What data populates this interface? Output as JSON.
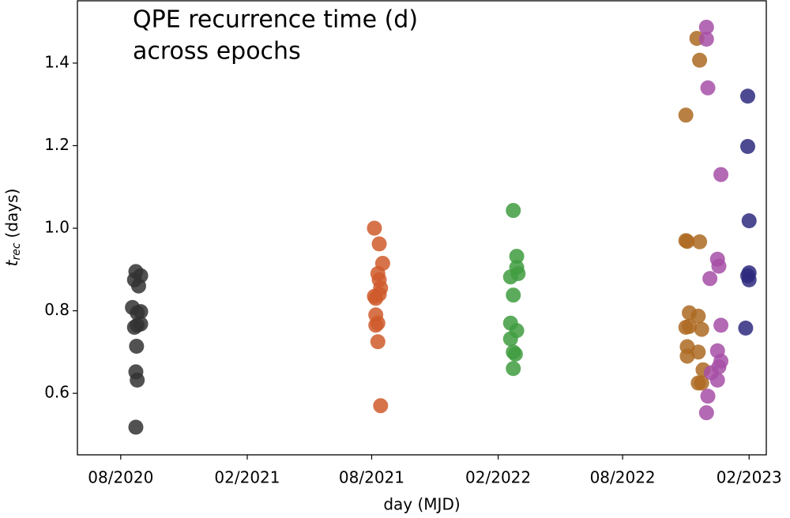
{
  "chart_data": {
    "type": "scatter",
    "title": [
      "QPE recurrence time (d)",
      "across epochs"
    ],
    "xlabel": "day (MJD)",
    "ylabel": {
      "symbol": "t",
      "subscript": "rec",
      "unit": "(days)"
    },
    "xlim": [
      58999,
      60001
    ],
    "ylim": [
      0.451,
      1.551
    ],
    "xticks": [
      {
        "value": 59062,
        "label": "08/2020"
      },
      {
        "value": 59246,
        "label": "02/2021"
      },
      {
        "value": 59427,
        "label": "08/2021"
      },
      {
        "value": 59611,
        "label": "02/2022"
      },
      {
        "value": 59792,
        "label": "08/2022"
      },
      {
        "value": 59976,
        "label": "02/2023"
      }
    ],
    "yticks": [
      0.6,
      0.8,
      {
        "value": 1,
        "label": "1.0"
      },
      1.2,
      1.4
    ],
    "grid": false,
    "series": [
      {
        "color": "#333333",
        "x": [
          59084,
          59082,
          59091,
          59088,
          59079,
          59091,
          59086,
          59082,
          59091,
          59086,
          59085,
          59084,
          59086,
          59084
        ],
        "values": [
          0.895,
          0.875,
          0.885,
          0.86,
          0.808,
          0.798,
          0.795,
          0.76,
          0.768,
          0.765,
          0.714,
          0.652,
          0.632,
          0.518
        ]
      },
      {
        "color": "#cf5a2c",
        "x": [
          59431,
          59438,
          59443,
          59436,
          59438,
          59440,
          59431,
          59433,
          59438,
          59433,
          59436,
          59433,
          59436,
          59440
        ],
        "values": [
          1.0,
          0.962,
          0.915,
          0.89,
          0.875,
          0.855,
          0.835,
          0.83,
          0.84,
          0.79,
          0.77,
          0.765,
          0.725,
          0.57
        ]
      },
      {
        "color": "#3f9c3f",
        "x": [
          59633,
          59638,
          59638,
          59640,
          59629,
          59633,
          59629,
          59638,
          59629,
          59633,
          59636,
          59633
        ],
        "values": [
          1.043,
          0.932,
          0.905,
          0.89,
          0.882,
          0.838,
          0.77,
          0.752,
          0.732,
          0.7,
          0.695,
          0.66
        ]
      },
      {
        "color": "#ad6a22",
        "x": [
          59900,
          59904,
          59884,
          59884,
          59886,
          59904,
          59889,
          59902,
          59884,
          59889,
          59907,
          59886,
          59902,
          59886,
          59909,
          59902,
          59907
        ],
        "values": [
          1.46,
          1.407,
          1.274,
          0.97,
          0.968,
          0.967,
          0.795,
          0.787,
          0.76,
          0.762,
          0.755,
          0.713,
          0.7,
          0.69,
          0.657,
          0.625,
          0.625
        ]
      },
      {
        "color": "#a64fa6",
        "x": [
          59914,
          59914,
          59916,
          59935,
          59930,
          59932,
          59919,
          59935,
          59930,
          59935,
          59932,
          59921,
          59930,
          59916,
          59914
        ],
        "values": [
          1.487,
          1.458,
          1.34,
          1.13,
          0.925,
          0.908,
          0.878,
          0.765,
          0.703,
          0.678,
          0.664,
          0.65,
          0.632,
          0.593,
          0.553
        ]
      },
      {
        "color": "#2e2a7f",
        "x": [
          59974,
          59974,
          59976,
          59976,
          59974,
          59976,
          59971
        ],
        "values": [
          1.32,
          1.198,
          1.018,
          0.892,
          0.885,
          0.875,
          0.758
        ]
      }
    ]
  }
}
